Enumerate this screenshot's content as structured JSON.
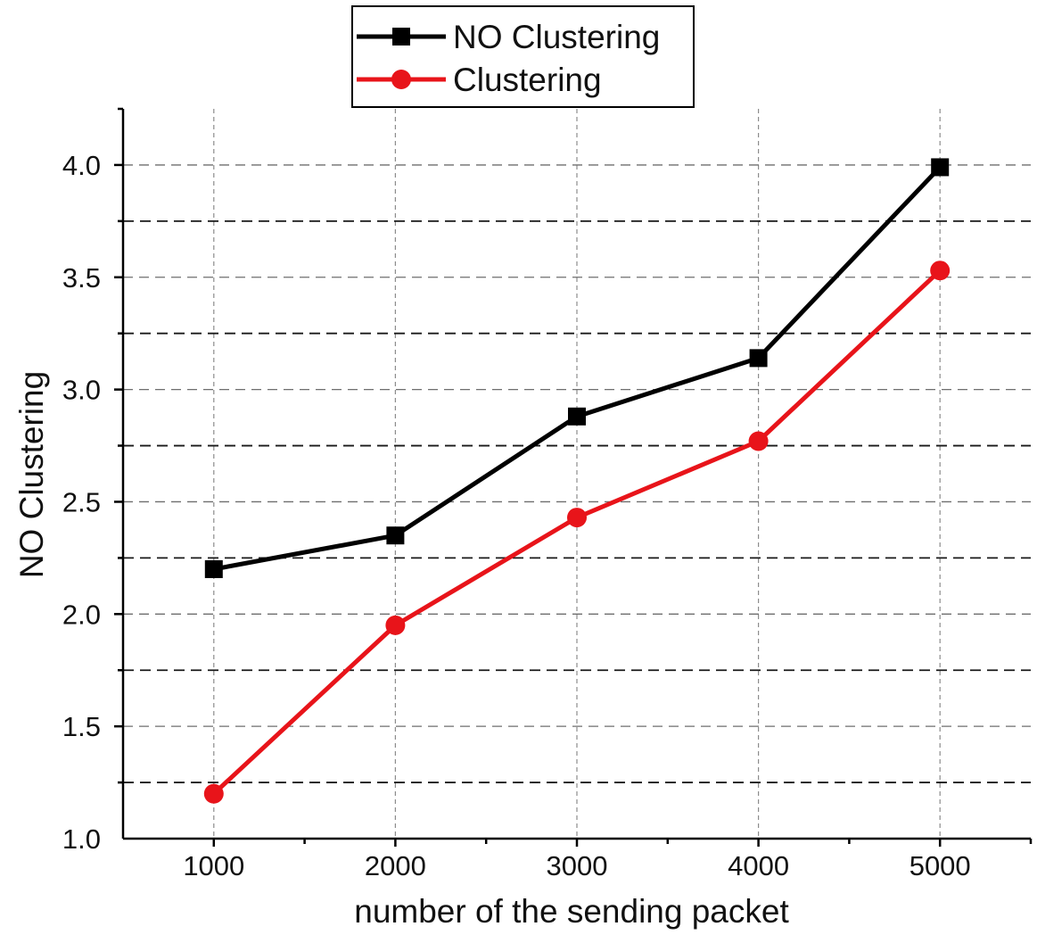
{
  "chart_data": {
    "type": "line",
    "x": [
      1000,
      2000,
      3000,
      4000,
      5000
    ],
    "x_tick_labels": [
      "1000",
      "2000",
      "3000",
      "4000",
      "5000"
    ],
    "y_tick_labels": [
      "1.0",
      "1.5",
      "2.0",
      "2.5",
      "3.0",
      "3.5",
      "4.0"
    ],
    "xlabel": "number of the sending packet",
    "ylabel": "NO Clustering",
    "xlim": [
      500,
      5500
    ],
    "ylim": [
      1.0,
      4.25
    ],
    "grid": true,
    "legend_position": "top",
    "series": [
      {
        "name": "NO Clustering",
        "color": "#000000",
        "marker": "square",
        "values": [
          2.2,
          2.35,
          2.88,
          3.14,
          3.99
        ]
      },
      {
        "name": "Clustering",
        "color": "#e8141a",
        "marker": "circle",
        "values": [
          1.2,
          1.95,
          2.43,
          2.77,
          3.53
        ]
      }
    ]
  }
}
